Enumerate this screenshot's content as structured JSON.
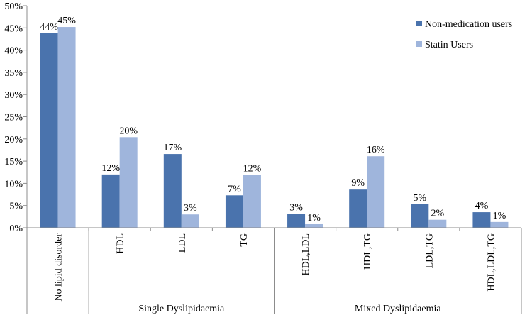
{
  "chart_data": {
    "type": "bar",
    "title": "",
    "xlabel": "",
    "ylabel": "",
    "ylim": [
      0,
      50
    ],
    "y_ticks": [
      0,
      5,
      10,
      15,
      20,
      25,
      30,
      35,
      40,
      45,
      50
    ],
    "y_tick_labels": [
      "0%",
      "5%",
      "10%",
      "15%",
      "20%",
      "25%",
      "30%",
      "35%",
      "40%",
      "45%",
      "50%"
    ],
    "categories": [
      "No lipid disorder",
      "HDL",
      "LDL",
      "TG",
      "HDL,LDL",
      "HDL,TG",
      "LDL,TG",
      "HDL,LDL,TG"
    ],
    "groups": [
      {
        "label": "",
        "categories": [
          "No lipid disorder"
        ]
      },
      {
        "label": "Single Dyslipidaemia",
        "categories": [
          "HDL",
          "LDL",
          "TG"
        ]
      },
      {
        "label": "Mixed Dyslipidaemia",
        "categories": [
          "HDL,LDL",
          "HDL,TG",
          "LDL,TG",
          "HDL,LDL,TG"
        ]
      }
    ],
    "series": [
      {
        "name": "Non-medication users",
        "color": "#4a73ad",
        "values": [
          43.8,
          12.0,
          16.6,
          7.3,
          3.1,
          8.6,
          5.3,
          3.5
        ],
        "labels": [
          "44%",
          "12%",
          "17%",
          "7%",
          "3%",
          "9%",
          "5%",
          "4%"
        ]
      },
      {
        "name": "Statin Users",
        "color": "#9fb5dc",
        "values": [
          45.2,
          20.4,
          3.0,
          11.9,
          0.8,
          16.1,
          1.8,
          1.3
        ],
        "labels": [
          "45%",
          "20%",
          "3%",
          "12%",
          "1%",
          "16%",
          "2%",
          "1%"
        ]
      }
    ],
    "legend": "top-right"
  }
}
